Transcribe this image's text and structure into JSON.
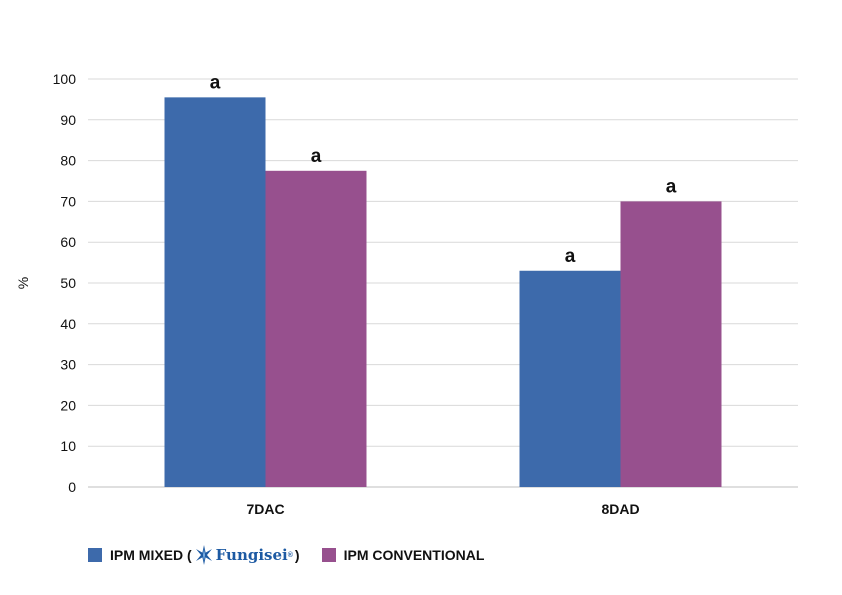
{
  "chart_data": {
    "type": "bar",
    "categories": [
      "7DAC",
      "8DAD"
    ],
    "series": [
      {
        "name": "IPM MIXED",
        "color": "#3d6aab",
        "values": [
          95.5,
          53
        ],
        "labels": [
          "a",
          "a"
        ]
      },
      {
        "name": "IPM CONVENTIONAL",
        "color": "#97508e",
        "values": [
          77.5,
          70
        ],
        "labels": [
          "a",
          "a"
        ]
      }
    ],
    "ylabel": "%",
    "ylim": [
      0,
      100
    ],
    "yticks": [
      0,
      10,
      20,
      30,
      40,
      50,
      60,
      70,
      80,
      90,
      100
    ],
    "grid": true,
    "legend_position": "bottom-left"
  },
  "legend": {
    "mixed_prefix": "IPM MIXED (",
    "mixed_suffix": ")",
    "logo_text": "Fungisei",
    "logo_reg": "®",
    "conventional": "IPM CONVENTIONAL"
  }
}
